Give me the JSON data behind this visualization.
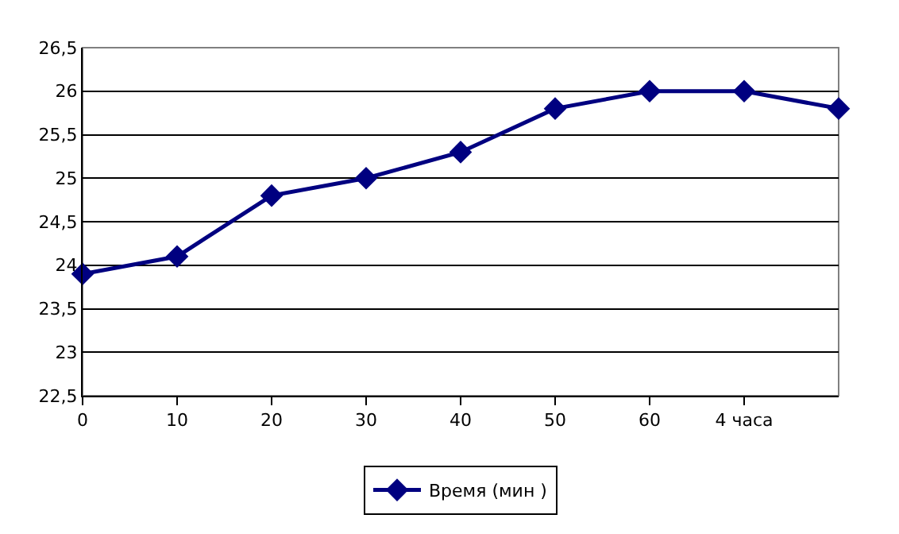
{
  "chart_data": {
    "type": "line",
    "categories": [
      "0",
      "10",
      "20",
      "30",
      "40",
      "50",
      "60",
      "4 часа",
      null
    ],
    "series": [
      {
        "name": "Время (мин )",
        "color": "#000080",
        "values": [
          23.9,
          24.1,
          24.8,
          25.0,
          25.3,
          25.8,
          26.0,
          26.0,
          25.8
        ]
      }
    ],
    "ylim": [
      22.5,
      26.5
    ],
    "yticks": [
      {
        "value": 22.5,
        "label": "22,5"
      },
      23,
      {
        "value": 23.5,
        "label": "23,5"
      },
      24,
      {
        "value": 24.5,
        "label": "24,5"
      },
      25,
      {
        "value": 25.5,
        "label": "25,5"
      },
      26,
      {
        "value": 26.5,
        "label": "26,5"
      }
    ],
    "grid": "y",
    "legend": "bottom",
    "marker": "diamond",
    "line_style": "solid"
  }
}
